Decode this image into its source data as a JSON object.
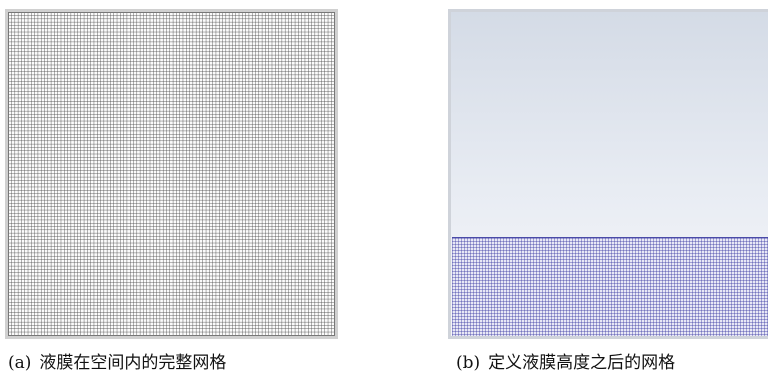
{
  "figures": [
    {
      "label": "(a)",
      "caption": "液膜在空间内的完整网格"
    },
    {
      "label": "(b)",
      "caption": "定义液膜高度之后的网格"
    }
  ]
}
